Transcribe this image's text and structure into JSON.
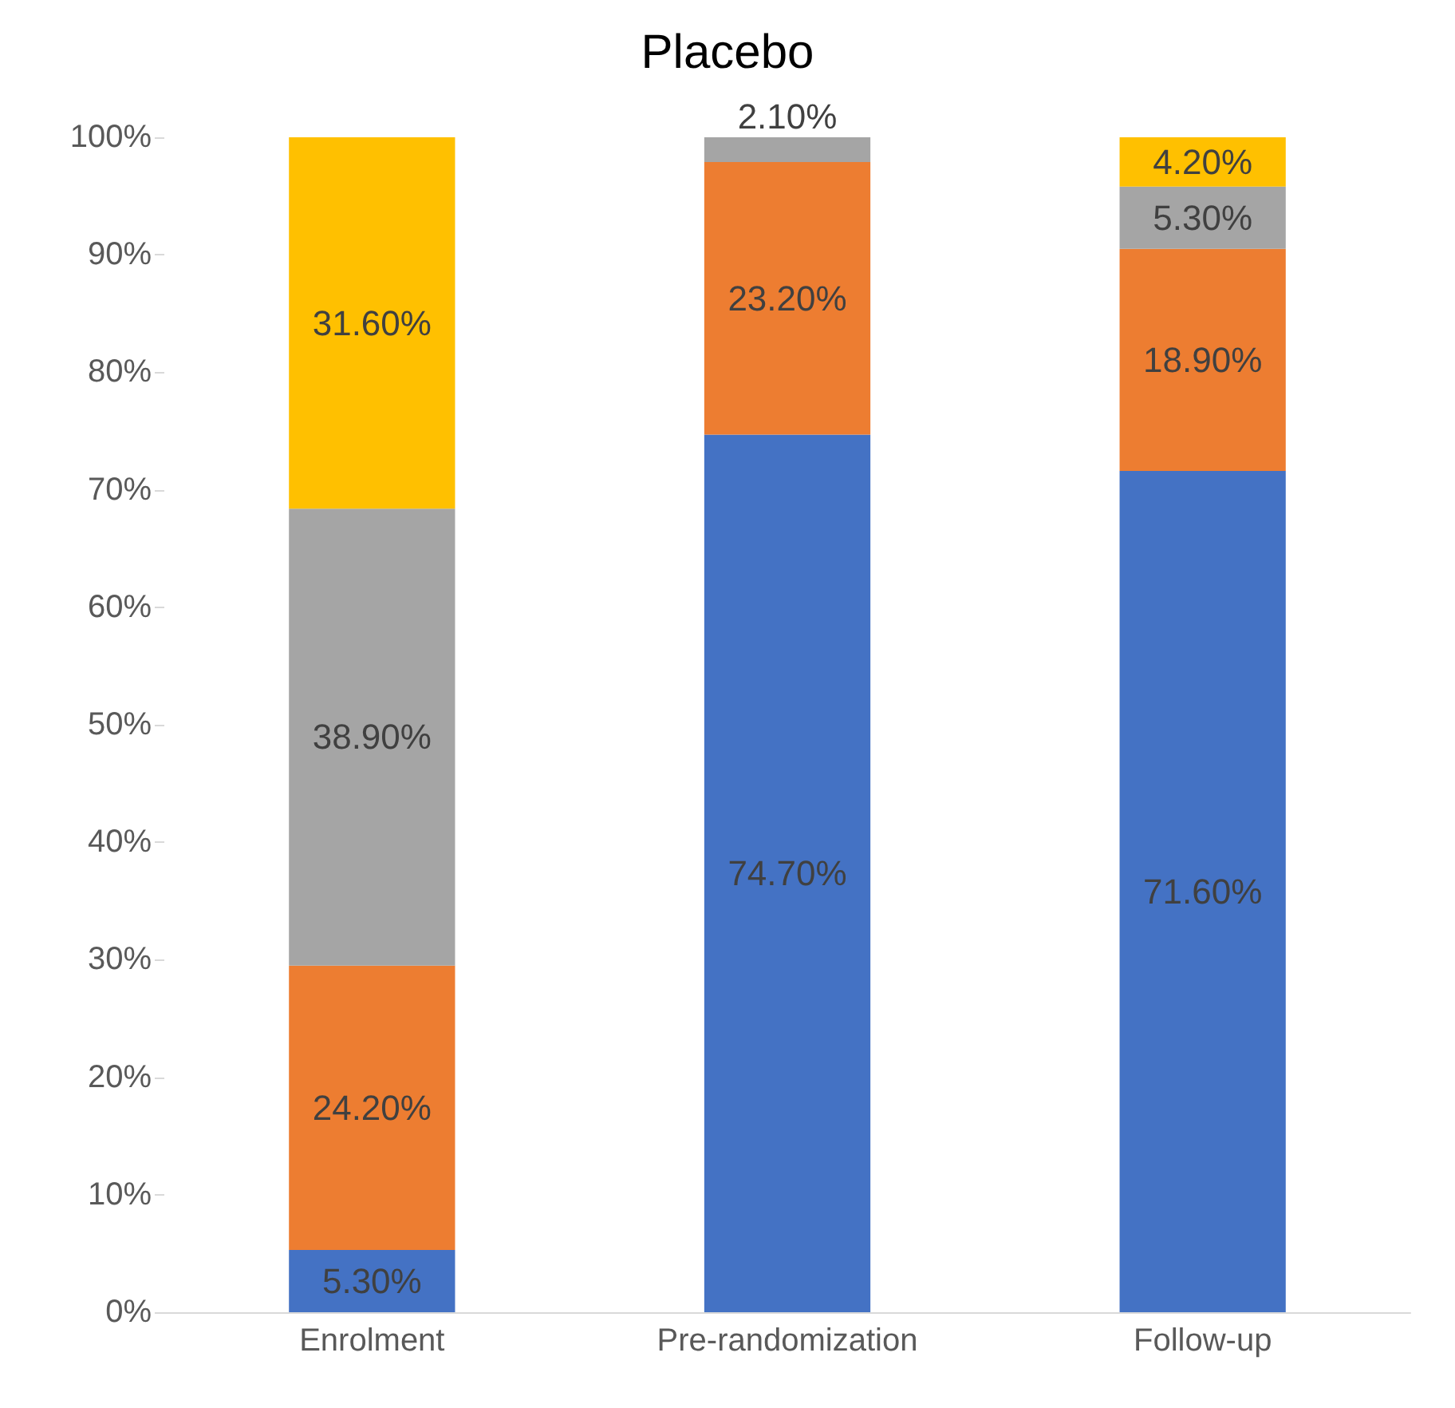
{
  "chart_data": {
    "type": "bar",
    "title": "Placebo",
    "stacked": true,
    "categories": [
      "Enrolment",
      "Pre-randomization",
      "Follow-up"
    ],
    "series": [
      {
        "color": "#4472c4",
        "values": [
          5.3,
          74.7,
          71.6
        ],
        "value_labels": [
          "5.30%",
          "74.70%",
          "71.60%"
        ]
      },
      {
        "color": "#ed7d31",
        "values": [
          24.2,
          23.2,
          18.9
        ],
        "value_labels": [
          "24.20%",
          "23.20%",
          "18.90%"
        ]
      },
      {
        "color": "#a5a5a5",
        "values": [
          38.9,
          2.1,
          5.3
        ],
        "value_labels": [
          "38.90%",
          "2.10%",
          "5.30%"
        ]
      },
      {
        "color": "#ffc000",
        "values": [
          31.6,
          null,
          4.2
        ],
        "value_labels": [
          "31.60%",
          null,
          "4.20%"
        ]
      }
    ],
    "ylim": [
      0,
      100
    ],
    "yticks": [
      {
        "value": 0,
        "label": "0%"
      },
      {
        "value": 10,
        "label": "10%"
      },
      {
        "value": 20,
        "label": "20%"
      },
      {
        "value": 30,
        "label": "30%"
      },
      {
        "value": 40,
        "label": "40%"
      },
      {
        "value": 50,
        "label": "50%"
      },
      {
        "value": 60,
        "label": "60%"
      },
      {
        "value": 70,
        "label": "70%"
      },
      {
        "value": 80,
        "label": "80%"
      },
      {
        "value": 90,
        "label": "90%"
      },
      {
        "value": 100,
        "label": "100%"
      }
    ],
    "grid": false
  }
}
